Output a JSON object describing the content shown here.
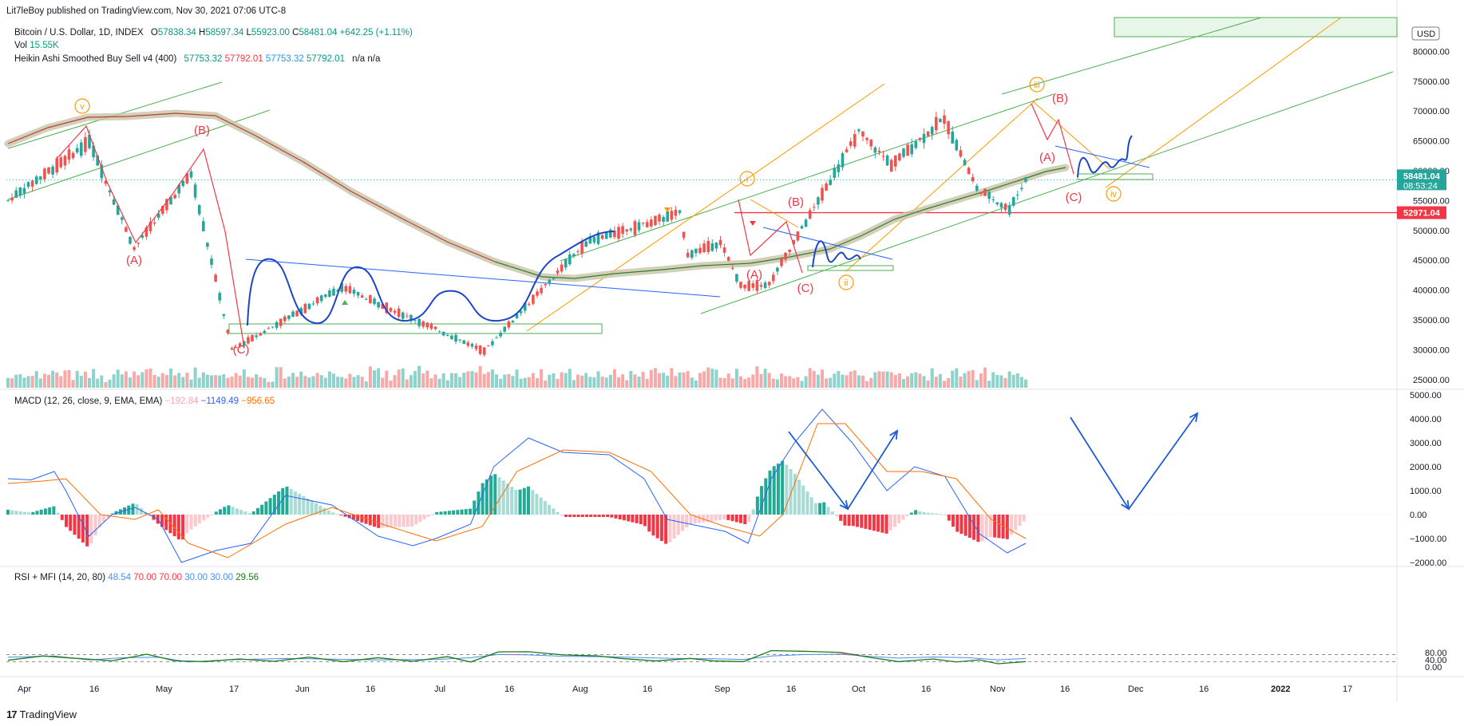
{
  "header": {
    "published": "Lit7leBoy published on TradingView.com, Nov 30, 2021 07:06 UTC-8"
  },
  "symbol": {
    "name": "Bitcoin / U.S. Dollar, 1D, INDEX",
    "o_label": "O",
    "o": "57838.34",
    "h_label": "H",
    "h": "58597.34",
    "l_label": "L",
    "l": "55923.00",
    "c_label": "C",
    "c": "58481.04",
    "change": "+642.25 (+1.11%)"
  },
  "vol": {
    "label": "Vol",
    "value": "15.55K"
  },
  "heikin": {
    "label": "Heikin Ashi Smoothed Buy Sell v4 (400)",
    "v1": "57753.32",
    "v2": "57792.01",
    "v3": "57753.32",
    "v4": "57792.01",
    "na1": "n/a",
    "na2": "n/a"
  },
  "macd": {
    "label": "MACD (12, 26, close, 9, EMA, EMA)",
    "hist": "−192.84",
    "macd": "−1149.49",
    "signal": "−956.65"
  },
  "rsi": {
    "label": "RSI + MFI (14, 20, 80)",
    "v1": "48.54",
    "v2": "70.00",
    "v3": "70.00",
    "v4": "30.00",
    "v5": "30.00",
    "v6": "29.56"
  },
  "currency": "USD",
  "price_axis": [
    "80000.00",
    "75000.00",
    "70000.00",
    "65000.00",
    "60000.00",
    "55000.00",
    "50000.00",
    "45000.00",
    "40000.00",
    "35000.00",
    "30000.00",
    "25000.00"
  ],
  "macd_axis": [
    "5000.00",
    "4000.00",
    "3000.00",
    "2000.00",
    "1000.00",
    "0.00",
    "−1000.00",
    "−2000.00"
  ],
  "rsi_axis": [
    "80.00",
    "40.00",
    "0.00"
  ],
  "time_axis": [
    "Apr",
    "16",
    "May",
    "17",
    "Jun",
    "16",
    "Jul",
    "16",
    "Aug",
    "16",
    "Sep",
    "16",
    "Oct",
    "16",
    "Nov",
    "16",
    "Dec",
    "16",
    "2022",
    "17"
  ],
  "last_price": {
    "value": "58481.04",
    "countdown": "08:53:24",
    "color": "#26a69a"
  },
  "support_price": {
    "value": "52971.04",
    "color": "#f23645"
  },
  "wave_labels": [
    "v",
    "i",
    "ii",
    "iii",
    "iv"
  ],
  "correction_labels": [
    "(A)",
    "(B)",
    "(C)"
  ],
  "footer": {
    "brand": "TradingView",
    "logo": "17"
  },
  "colors": {
    "up": "#26a69a",
    "down": "#ef5350",
    "vol_up": "#8ed3cb",
    "vol_down": "#f7a9a7",
    "hist_up_dark": "#22ab94",
    "hist_up_light": "#a7dbd3",
    "hist_down_dark": "#f23645",
    "hist_down_light": "#fbc8cd",
    "macd": "#2962ff",
    "signal": "#ff6d00",
    "channel": "#4caf50",
    "wave_line": "#f23645",
    "orange_line": "#ff9800",
    "ha_line": "#b2413a",
    "ha_band": "#c9c3a6",
    "trend_blue": "#2962ff",
    "rsi": "#4c8fe8",
    "mfi": "#1b7a1b",
    "wave_label": "#ff9800"
  },
  "chart_data": [
    {
      "type": "candlestick",
      "title": "Bitcoin / U.S. Dollar, 1D, INDEX",
      "x_range": [
        "2021-03-25",
        "2022-01-31"
      ],
      "ylim": [
        20000,
        82500
      ],
      "key_points": [
        {
          "date": "2021-03-25",
          "price": 55000
        },
        {
          "date": "2021-04-14",
          "price": 64800
        },
        {
          "date": "2021-04-25",
          "price": 47000
        },
        {
          "date": "2021-05-09",
          "price": 59500
        },
        {
          "date": "2021-05-19",
          "price": 30000
        },
        {
          "date": "2021-06-15",
          "price": 40500
        },
        {
          "date": "2021-07-20",
          "price": 29800
        },
        {
          "date": "2021-08-14",
          "price": 48000
        },
        {
          "date": "2021-09-06",
          "price": 52900
        },
        {
          "date": "2021-09-08",
          "price": 46000
        },
        {
          "date": "2021-09-16",
          "price": 48000
        },
        {
          "date": "2021-09-21",
          "price": 40700
        },
        {
          "date": "2021-09-28",
          "price": 41000
        },
        {
          "date": "2021-10-20",
          "price": 66500
        },
        {
          "date": "2021-10-28",
          "price": 61000
        },
        {
          "date": "2021-11-10",
          "price": 68800
        },
        {
          "date": "2021-11-18",
          "price": 57000
        },
        {
          "date": "2021-11-26",
          "price": 53500
        },
        {
          "date": "2021-11-30",
          "price": 58481
        }
      ],
      "last_close": 58481.04
    },
    {
      "type": "line",
      "title": "MACD (12, 26, close, 9, EMA, EMA)",
      "ylim": [
        -2000,
        5000
      ],
      "series": [
        {
          "name": "MACD",
          "last": -1149.49
        },
        {
          "name": "Signal",
          "last": -956.65
        },
        {
          "name": "Histogram",
          "last": -192.84
        }
      ]
    },
    {
      "type": "line",
      "title": "RSI + MFI (14, 20, 80)",
      "ylim": [
        0,
        100
      ],
      "series": [
        {
          "name": "RSI",
          "last": 48.54
        },
        {
          "name": "MFI",
          "last": 29.56
        }
      ],
      "bands": [
        70,
        30
      ]
    }
  ]
}
